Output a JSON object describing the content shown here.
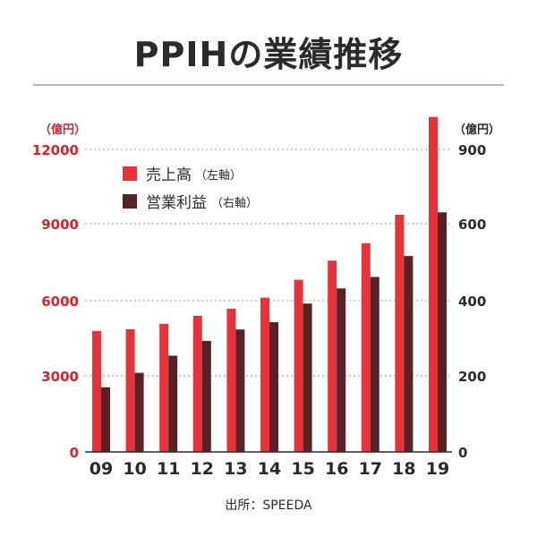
{
  "title": "PPIHの業績推移",
  "source": "出所：SPEEDA",
  "colors": {
    "sales": "#e8323a",
    "profit": "#5b2226",
    "axis_text": "#d9232d",
    "grid": "#9a9a9a",
    "text": "#2b2b2b"
  },
  "chart_data": {
    "type": "bar",
    "title": "PPIHの業績推移",
    "categories": [
      "09",
      "10",
      "11",
      "12",
      "13",
      "14",
      "15",
      "16",
      "17",
      "18",
      "19"
    ],
    "series": [
      {
        "name": "売上高",
        "name_suffix": "（左軸）",
        "axis": "left",
        "values": [
          4800,
          4870,
          5080,
          5400,
          5680,
          6120,
          6830,
          7590,
          8280,
          9410,
          13290
        ]
      },
      {
        "name": "営業利益",
        "name_suffix": "（右軸）",
        "axis": "right",
        "values": [
          170,
          208,
          253,
          292,
          322,
          341,
          390,
          430,
          460,
          515,
          630
        ]
      }
    ],
    "left_axis": {
      "unit": "（億円）",
      "ticks": [
        "0",
        "3000",
        "6000",
        "9000",
        "12000"
      ],
      "ylim": [
        0,
        12000
      ]
    },
    "right_axis": {
      "unit": "（億円）",
      "ticks": [
        "0",
        "200",
        "400",
        "600",
        "900"
      ],
      "ylim": [
        0,
        900
      ]
    },
    "grid": true,
    "legend_position": "top-left"
  }
}
